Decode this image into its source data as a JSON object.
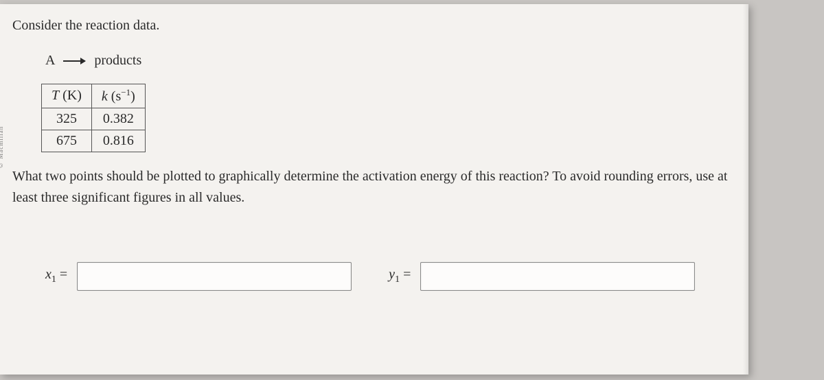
{
  "sideLabel": "© Macmillan",
  "promptIntro": "Consider the reaction data.",
  "reaction": {
    "left": "A",
    "right": "products"
  },
  "table": {
    "headers": {
      "t": "T",
      "tUnit": " (K)",
      "k": "k",
      "kUnit": " (s",
      "kExp": "−1",
      "kClose": ")"
    },
    "rows": [
      {
        "T": "325",
        "k": "0.382"
      },
      {
        "T": "675",
        "k": "0.816"
      }
    ]
  },
  "question": "What two points should be plotted to graphically determine the activation energy of this reaction? To avoid rounding errors, use at least three significant figures in all values.",
  "labels": {
    "x1_var": "x",
    "x1_sub": "1",
    "eq": " =",
    "y1_var": "y",
    "y1_sub": "1"
  },
  "colors": {
    "pageBg": "#f4f2ef",
    "border": "#555",
    "text": "#2a2a2a"
  }
}
